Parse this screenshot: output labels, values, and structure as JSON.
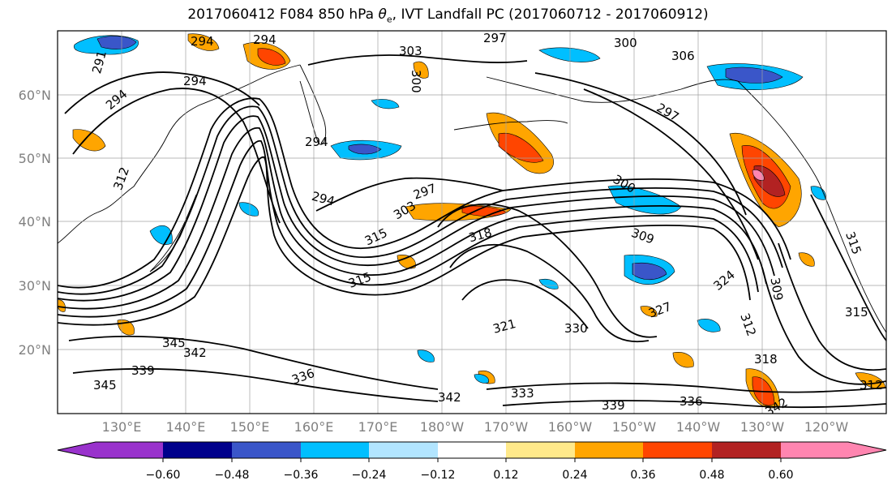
{
  "title_prefix": "2017060412 F084 850 hPa ",
  "title_symbol": "θ",
  "title_subscript": "e",
  "title_suffix": ", IVT Landfall PC (2017060712 - 2017060912)",
  "lat_labels": [
    "60°N",
    "50°N",
    "40°N",
    "30°N",
    "20°N"
  ],
  "lon_labels": [
    "130°E",
    "140°E",
    "150°E",
    "160°E",
    "170°E",
    "180°W",
    "170°W",
    "160°W",
    "150°W",
    "140°W",
    "130°W",
    "120°W"
  ],
  "contour_labels": [
    "294",
    "294",
    "294",
    "291",
    "294",
    "294",
    "303",
    "300",
    "297",
    "300",
    "306",
    "297",
    "300",
    "309",
    "297",
    "294",
    "303",
    "312",
    "315",
    "318",
    "315",
    "321",
    "324",
    "327",
    "330",
    "333",
    "336",
    "339",
    "342",
    "345",
    "345",
    "342",
    "339",
    "336",
    "342",
    "318",
    "312",
    "309",
    "315",
    "312",
    "315"
  ],
  "colorbar": {
    "ticks": [
      "−0.60",
      "−0.48",
      "−0.36",
      "−0.24",
      "−0.12",
      "0.12",
      "0.24",
      "0.36",
      "0.48",
      "0.60"
    ],
    "colors": [
      "#9932cc",
      "#00008b",
      "#3a56c9",
      "#00bfff",
      "#b2e5ff",
      "#ffffff",
      "#ffe98a",
      "#ffa500",
      "#ff4500",
      "#b22222",
      "#ff85b0"
    ]
  }
}
